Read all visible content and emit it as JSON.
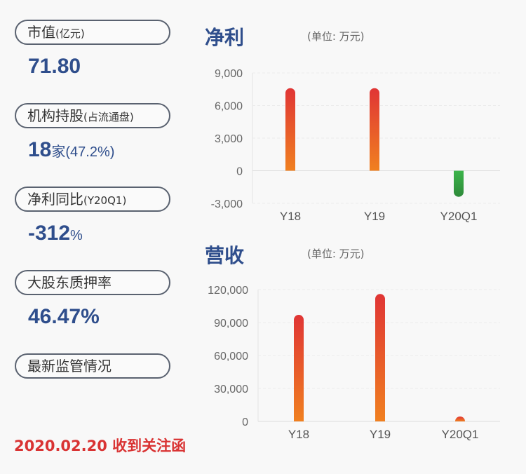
{
  "left": {
    "items": [
      {
        "label": "市值",
        "sub": "(亿元)",
        "value": "71.80",
        "value_suffix": ""
      },
      {
        "label": "机构持股",
        "sub": "(占流通盘)",
        "value": "18",
        "value_suffix": "家(47.2%)"
      },
      {
        "label": "净利同比",
        "sub": "(Y20Q1)",
        "value": "-312",
        "value_suffix": "%"
      },
      {
        "label": "大股东质押率",
        "sub": "",
        "value": "46.47%",
        "value_suffix": ""
      },
      {
        "label": "最新监管情况",
        "sub": ""
      }
    ],
    "notice": "2020.02.20 收到关注函"
  },
  "colors": {
    "positive_top": "#e03535",
    "positive_bottom": "#f08020",
    "negative_top": "#3cb44a",
    "negative_bottom": "#2e8a3a",
    "title": "#2f4e8c"
  },
  "chart_data": [
    {
      "type": "bar",
      "title": "净利",
      "unit": "(单位: 万元)",
      "categories": [
        "Y18",
        "Y19",
        "Y20Q1"
      ],
      "values": [
        7600,
        7600,
        -2400
      ],
      "ylim": [
        -3000,
        9000
      ],
      "yticks": [
        9000,
        6000,
        3000,
        0,
        -3000
      ],
      "ytick_labels": [
        "9,000",
        "6,000",
        "3,000",
        "0",
        "-3,000"
      ],
      "grid": true
    },
    {
      "type": "bar",
      "title": "营收",
      "unit": "(单位: 万元)",
      "categories": [
        "Y18",
        "Y19",
        "Y20Q1"
      ],
      "values": [
        97000,
        116000,
        5000
      ],
      "ylim": [
        0,
        120000
      ],
      "yticks": [
        120000,
        90000,
        60000,
        30000,
        0
      ],
      "ytick_labels": [
        "120,000",
        "90,000",
        "60,000",
        "30,000",
        "0"
      ],
      "grid": true
    }
  ]
}
